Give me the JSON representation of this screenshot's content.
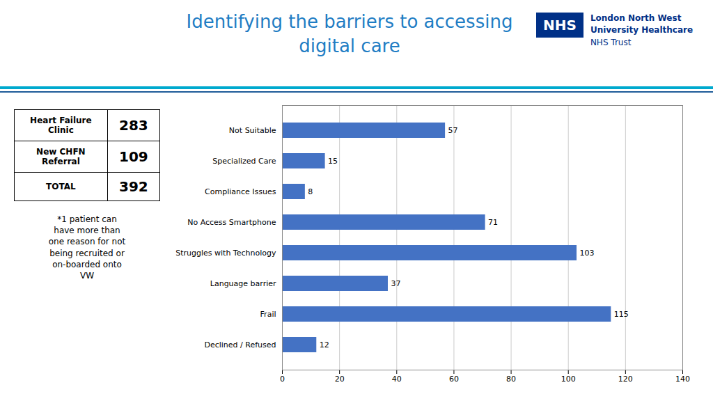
{
  "chart_data": {
    "type": "bar",
    "orientation": "horizontal",
    "title": "Identifying the barriers to accessing\ndigital care",
    "categories": [
      "Not Suitable",
      "Specialized Care",
      "Compliance Issues",
      "No Access Smartphone",
      "Struggles with Technology",
      "Language barrier",
      "Frail",
      "Declined / Refused"
    ],
    "values": [
      57,
      15,
      8,
      71,
      103,
      37,
      115,
      12
    ],
    "color": "#4472C4",
    "xlim": [
      0,
      140
    ],
    "xticks": [
      0,
      20,
      40,
      60,
      80,
      100,
      120,
      140
    ],
    "grid": true,
    "data_labels": true,
    "annotations": [
      "NHS",
      "London North West",
      "University Healthcare",
      "NHS Trust",
      "Heart Failure Clinic",
      "283",
      "New CHFN Referral",
      "109",
      "TOTAL",
      "392",
      "*1 patient can\nhave more than\none reason for not\nbeing recruited or\non-boarded onto\nVW"
    ]
  }
}
